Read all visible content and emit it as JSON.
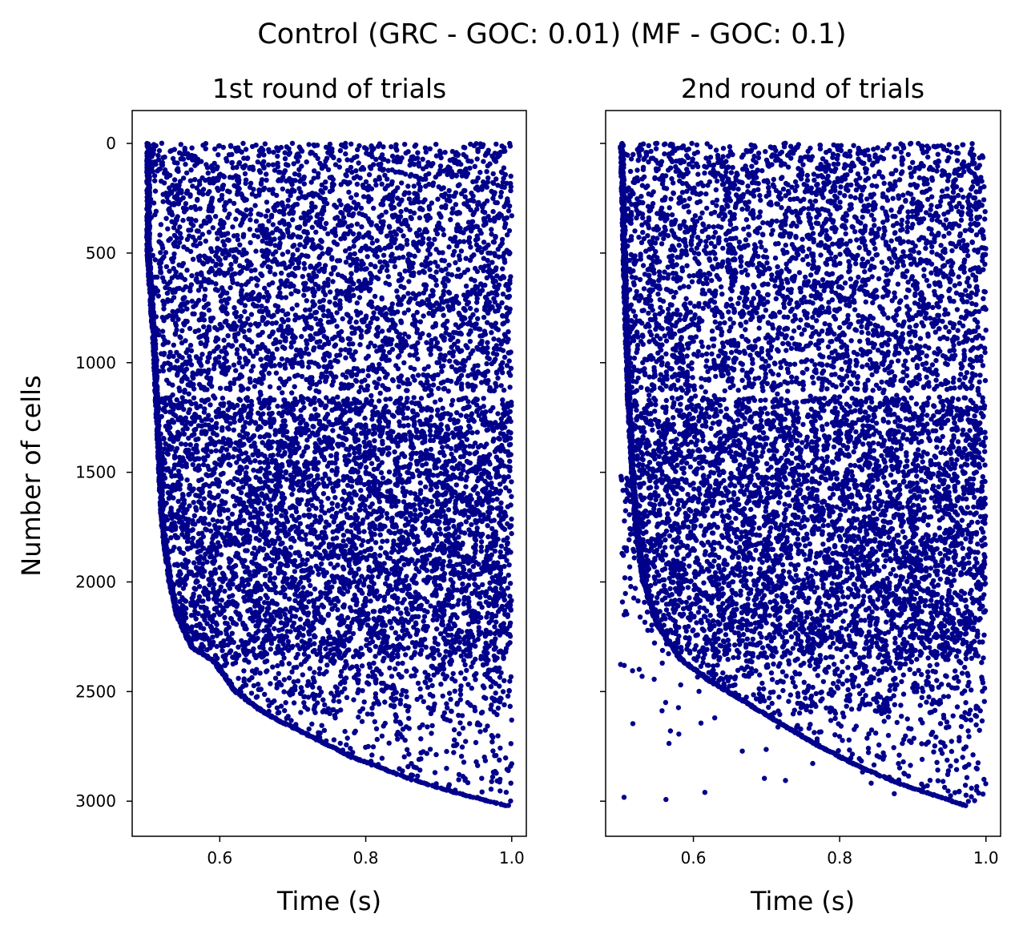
{
  "suptitle": "Control (GRC - GOC: 0.01) (MF - GOC: 0.1)",
  "ylabel": "Number of cells",
  "marker_color": "#00008b",
  "chart_data": [
    {
      "type": "scatter",
      "title": "1st round of trials",
      "xlabel": "Time (s)",
      "ylabel": "Number of cells",
      "xticks": [
        "0.6",
        "0.8",
        "1.0"
      ],
      "yticks": [
        "0",
        "500",
        "1000",
        "1500",
        "2000",
        "2500",
        "3000"
      ],
      "xlim": [
        0.48,
        1.02
      ],
      "ylim": [
        3160,
        -150
      ],
      "y_inverted": true,
      "grid": false,
      "legend": "none",
      "raster": {
        "x_range": [
          0.5,
          1.0
        ],
        "y_range": [
          0,
          3020
        ],
        "onset_curve": [
          [
            0,
            0.5
          ],
          [
            500,
            0.5
          ],
          [
            900,
            0.508
          ],
          [
            1200,
            0.512
          ],
          [
            1500,
            0.516
          ],
          [
            1750,
            0.52
          ],
          [
            2000,
            0.53
          ],
          [
            2150,
            0.54
          ],
          [
            2300,
            0.56
          ],
          [
            2360,
            0.59
          ],
          [
            2500,
            0.62
          ],
          [
            2600,
            0.66
          ],
          [
            2700,
            0.72
          ],
          [
            2800,
            0.78
          ],
          [
            2900,
            0.86
          ],
          [
            2960,
            0.92
          ],
          [
            3020,
            0.99
          ]
        ],
        "stray_early_points": false
      }
    },
    {
      "type": "scatter",
      "title": "2nd round of trials",
      "xlabel": "Time (s)",
      "xticks": [
        "0.6",
        "0.8",
        "1.0"
      ],
      "yticks": [
        "0",
        "500",
        "1000",
        "1500",
        "2000",
        "2500",
        "3000"
      ],
      "xlim": [
        0.48,
        1.02
      ],
      "ylim": [
        3160,
        -150
      ],
      "y_inverted": true,
      "grid": false,
      "legend": "none",
      "raster": {
        "x_range": [
          0.5,
          1.0
        ],
        "y_range": [
          0,
          3020
        ],
        "onset_curve": [
          [
            0,
            0.5
          ],
          [
            700,
            0.505
          ],
          [
            1200,
            0.51
          ],
          [
            1500,
            0.515
          ],
          [
            1750,
            0.52
          ],
          [
            2000,
            0.53
          ],
          [
            2200,
            0.55
          ],
          [
            2350,
            0.58
          ],
          [
            2450,
            0.62
          ],
          [
            2550,
            0.67
          ],
          [
            2650,
            0.72
          ],
          [
            2750,
            0.77
          ],
          [
            2850,
            0.83
          ],
          [
            2920,
            0.88
          ],
          [
            3020,
            0.97
          ]
        ],
        "stray_early_points": true
      }
    }
  ]
}
